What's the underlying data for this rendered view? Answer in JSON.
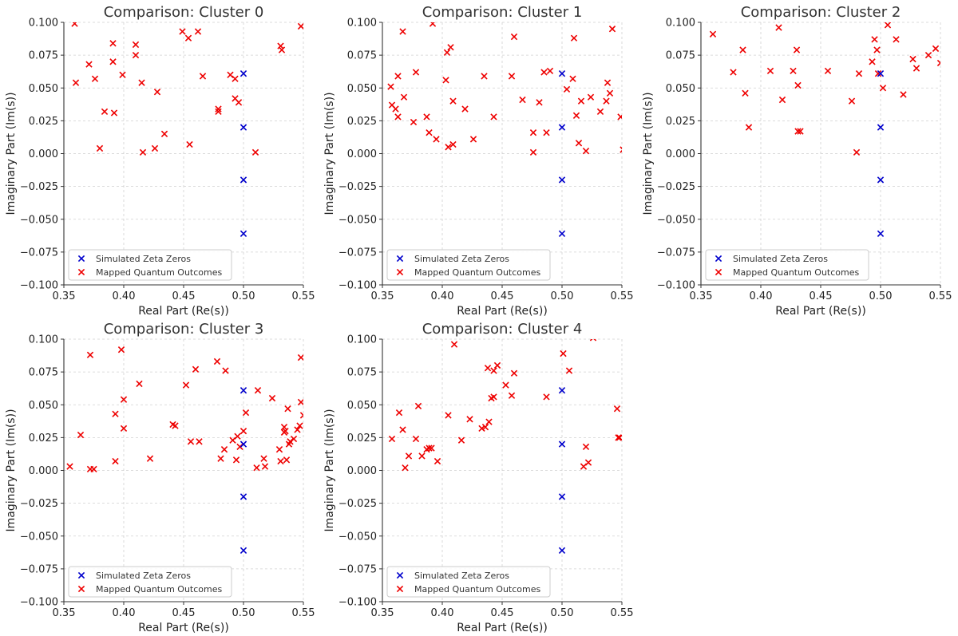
{
  "colors": {
    "zeros": "#0000cc",
    "outcomes": "#ee0000",
    "grid": "#d0d0d0",
    "axis": "#333333"
  },
  "chart_data": [
    {
      "type": "scatter",
      "title": "Comparison: Cluster 0",
      "xlabel": "Real Part (Re(s))",
      "ylabel": "Imaginary Part (Im(s))",
      "xlim": [
        0.35,
        0.55
      ],
      "ylim": [
        -0.1,
        0.1
      ],
      "xticks": [
        "0.35",
        "0.40",
        "0.45",
        "0.50",
        "0.55"
      ],
      "yticks": [
        "−0.100",
        "−0.075",
        "−0.050",
        "−0.025",
        "0.000",
        "0.025",
        "0.050",
        "0.075",
        "0.100"
      ],
      "grid": true,
      "legend": "lower left",
      "series": [
        {
          "name": "Simulated Zeta Zeros",
          "color": "#0000cc",
          "marker": "x",
          "points": [
            [
              0.5,
              0.061
            ],
            [
              0.5,
              0.02
            ],
            [
              0.5,
              -0.02
            ],
            [
              0.5,
              -0.061
            ]
          ]
        },
        {
          "name": "Mapped Quantum Outcomes",
          "color": "#ee0000",
          "marker": "x",
          "points": [
            [
              0.359,
              0.099
            ],
            [
              0.36,
              0.054
            ],
            [
              0.371,
              0.068
            ],
            [
              0.376,
              0.057
            ],
            [
              0.38,
              0.004
            ],
            [
              0.384,
              0.032
            ],
            [
              0.391,
              0.084
            ],
            [
              0.391,
              0.07
            ],
            [
              0.392,
              0.031
            ],
            [
              0.399,
              0.06
            ],
            [
              0.41,
              0.083
            ],
            [
              0.41,
              0.075
            ],
            [
              0.415,
              0.054
            ],
            [
              0.416,
              0.001
            ],
            [
              0.426,
              0.004
            ],
            [
              0.428,
              0.047
            ],
            [
              0.434,
              0.015
            ],
            [
              0.449,
              0.093
            ],
            [
              0.454,
              0.088
            ],
            [
              0.455,
              0.007
            ],
            [
              0.462,
              0.093
            ],
            [
              0.466,
              0.059
            ],
            [
              0.479,
              0.034
            ],
            [
              0.479,
              0.032
            ],
            [
              0.489,
              0.06
            ],
            [
              0.493,
              0.057
            ],
            [
              0.493,
              0.042
            ],
            [
              0.496,
              0.039
            ],
            [
              0.51,
              0.001
            ],
            [
              0.531,
              0.082
            ],
            [
              0.532,
              0.079
            ],
            [
              0.548,
              0.097
            ]
          ]
        }
      ]
    },
    {
      "type": "scatter",
      "title": "Comparison: Cluster 1",
      "xlabel": "Real Part (Re(s))",
      "ylabel": "Imaginary Part (Im(s))",
      "xlim": [
        0.35,
        0.55
      ],
      "ylim": [
        -0.1,
        0.1
      ],
      "xticks": [
        "0.35",
        "0.40",
        "0.45",
        "0.50",
        "0.55"
      ],
      "yticks": [
        "−0.100",
        "−0.075",
        "−0.050",
        "−0.025",
        "0.000",
        "0.025",
        "0.050",
        "0.075",
        "0.100"
      ],
      "grid": true,
      "legend": "lower left",
      "series": [
        {
          "name": "Simulated Zeta Zeros",
          "color": "#0000cc",
          "marker": "x",
          "points": [
            [
              0.5,
              0.061
            ],
            [
              0.5,
              0.02
            ],
            [
              0.5,
              -0.02
            ],
            [
              0.5,
              -0.061
            ]
          ]
        },
        {
          "name": "Mapped Quantum Outcomes",
          "color": "#ee0000",
          "marker": "x",
          "points": [
            [
              0.357,
              0.051
            ],
            [
              0.358,
              0.037
            ],
            [
              0.361,
              0.034
            ],
            [
              0.363,
              0.059
            ],
            [
              0.363,
              0.028
            ],
            [
              0.367,
              0.093
            ],
            [
              0.368,
              0.043
            ],
            [
              0.376,
              0.024
            ],
            [
              0.378,
              0.062
            ],
            [
              0.387,
              0.028
            ],
            [
              0.389,
              0.016
            ],
            [
              0.392,
              0.099
            ],
            [
              0.395,
              0.011
            ],
            [
              0.403,
              0.056
            ],
            [
              0.404,
              0.077
            ],
            [
              0.405,
              0.005
            ],
            [
              0.407,
              0.081
            ],
            [
              0.409,
              0.04
            ],
            [
              0.409,
              0.007
            ],
            [
              0.419,
              0.034
            ],
            [
              0.426,
              0.011
            ],
            [
              0.435,
              0.059
            ],
            [
              0.443,
              0.028
            ],
            [
              0.458,
              0.059
            ],
            [
              0.46,
              0.089
            ],
            [
              0.467,
              0.041
            ],
            [
              0.476,
              0.016
            ],
            [
              0.476,
              0.001
            ],
            [
              0.481,
              0.039
            ],
            [
              0.485,
              0.062
            ],
            [
              0.487,
              0.016
            ],
            [
              0.49,
              0.063
            ],
            [
              0.504,
              0.049
            ],
            [
              0.509,
              0.057
            ],
            [
              0.51,
              0.088
            ],
            [
              0.512,
              0.029
            ],
            [
              0.514,
              0.008
            ],
            [
              0.516,
              0.04
            ],
            [
              0.52,
              0.002
            ],
            [
              0.524,
              0.043
            ],
            [
              0.532,
              0.032
            ],
            [
              0.537,
              0.04
            ],
            [
              0.538,
              0.054
            ],
            [
              0.54,
              0.046
            ],
            [
              0.542,
              0.095
            ],
            [
              0.549,
              0.028
            ],
            [
              0.551,
              0.003
            ]
          ]
        }
      ]
    },
    {
      "type": "scatter",
      "title": "Comparison: Cluster 2",
      "xlabel": "Real Part (Re(s))",
      "ylabel": "Imaginary Part (Im(s))",
      "xlim": [
        0.35,
        0.55
      ],
      "ylim": [
        -0.1,
        0.1
      ],
      "xticks": [
        "0.35",
        "0.40",
        "0.45",
        "0.50",
        "0.55"
      ],
      "yticks": [
        "−0.100",
        "−0.075",
        "−0.050",
        "−0.025",
        "0.000",
        "0.025",
        "0.050",
        "0.075",
        "0.100"
      ],
      "grid": true,
      "legend": "lower left",
      "series": [
        {
          "name": "Simulated Zeta Zeros",
          "color": "#0000cc",
          "marker": "x",
          "points": [
            [
              0.5,
              0.061
            ],
            [
              0.5,
              0.02
            ],
            [
              0.5,
              -0.02
            ],
            [
              0.5,
              -0.061
            ]
          ]
        },
        {
          "name": "Mapped Quantum Outcomes",
          "color": "#ee0000",
          "marker": "x",
          "points": [
            [
              0.36,
              0.091
            ],
            [
              0.377,
              0.062
            ],
            [
              0.385,
              0.079
            ],
            [
              0.387,
              0.046
            ],
            [
              0.39,
              0.02
            ],
            [
              0.408,
              0.063
            ],
            [
              0.415,
              0.096
            ],
            [
              0.418,
              0.041
            ],
            [
              0.427,
              0.063
            ],
            [
              0.43,
              0.079
            ],
            [
              0.431,
              0.052
            ],
            [
              0.431,
              0.017
            ],
            [
              0.433,
              0.017
            ],
            [
              0.456,
              0.063
            ],
            [
              0.476,
              0.04
            ],
            [
              0.48,
              0.001
            ],
            [
              0.482,
              0.061
            ],
            [
              0.493,
              0.07
            ],
            [
              0.495,
              0.087
            ],
            [
              0.497,
              0.079
            ],
            [
              0.498,
              0.061
            ],
            [
              0.502,
              0.05
            ],
            [
              0.506,
              0.098
            ],
            [
              0.513,
              0.087
            ],
            [
              0.519,
              0.045
            ],
            [
              0.527,
              0.072
            ],
            [
              0.53,
              0.065
            ],
            [
              0.54,
              0.075
            ],
            [
              0.546,
              0.08
            ],
            [
              0.55,
              0.069
            ]
          ]
        }
      ]
    },
    {
      "type": "scatter",
      "title": "Comparison: Cluster 3",
      "xlabel": "Real Part (Re(s))",
      "ylabel": "Imaginary Part (Im(s))",
      "xlim": [
        0.35,
        0.55
      ],
      "ylim": [
        -0.1,
        0.1
      ],
      "xticks": [
        "0.35",
        "0.40",
        "0.45",
        "0.50",
        "0.55"
      ],
      "yticks": [
        "−0.100",
        "−0.075",
        "−0.050",
        "−0.025",
        "0.000",
        "0.025",
        "0.050",
        "0.075",
        "0.100"
      ],
      "grid": true,
      "legend": "lower left",
      "series": [
        {
          "name": "Simulated Zeta Zeros",
          "color": "#0000cc",
          "marker": "x",
          "points": [
            [
              0.5,
              0.061
            ],
            [
              0.5,
              0.02
            ],
            [
              0.5,
              -0.02
            ],
            [
              0.5,
              -0.061
            ]
          ]
        },
        {
          "name": "Mapped Quantum Outcomes",
          "color": "#ee0000",
          "marker": "x",
          "points": [
            [
              0.355,
              0.003
            ],
            [
              0.364,
              0.027
            ],
            [
              0.372,
              0.088
            ],
            [
              0.372,
              0.001
            ],
            [
              0.375,
              0.001
            ],
            [
              0.393,
              0.043
            ],
            [
              0.393,
              0.007
            ],
            [
              0.398,
              0.092
            ],
            [
              0.4,
              0.054
            ],
            [
              0.4,
              0.032
            ],
            [
              0.413,
              0.066
            ],
            [
              0.422,
              0.009
            ],
            [
              0.441,
              0.035
            ],
            [
              0.443,
              0.034
            ],
            [
              0.452,
              0.065
            ],
            [
              0.456,
              0.022
            ],
            [
              0.46,
              0.077
            ],
            [
              0.463,
              0.022
            ],
            [
              0.478,
              0.083
            ],
            [
              0.481,
              0.009
            ],
            [
              0.484,
              0.016
            ],
            [
              0.485,
              0.076
            ],
            [
              0.491,
              0.023
            ],
            [
              0.494,
              0.008
            ],
            [
              0.495,
              0.026
            ],
            [
              0.497,
              0.018
            ],
            [
              0.5,
              0.03
            ],
            [
              0.502,
              0.044
            ],
            [
              0.511,
              0.002
            ],
            [
              0.512,
              0.061
            ],
            [
              0.517,
              0.009
            ],
            [
              0.518,
              0.003
            ],
            [
              0.524,
              0.055
            ],
            [
              0.53,
              0.016
            ],
            [
              0.531,
              0.007
            ],
            [
              0.534,
              0.033
            ],
            [
              0.534,
              0.029
            ],
            [
              0.535,
              0.03
            ],
            [
              0.536,
              0.008
            ],
            [
              0.537,
              0.047
            ],
            [
              0.538,
              0.02
            ],
            [
              0.539,
              0.022
            ],
            [
              0.542,
              0.024
            ],
            [
              0.545,
              0.031
            ],
            [
              0.547,
              0.034
            ],
            [
              0.548,
              0.086
            ],
            [
              0.548,
              0.052
            ],
            [
              0.55,
              0.042
            ]
          ]
        }
      ]
    },
    {
      "type": "scatter",
      "title": "Comparison: Cluster 4",
      "xlabel": "Real Part (Re(s))",
      "ylabel": "Imaginary Part (Im(s))",
      "xlim": [
        0.35,
        0.55
      ],
      "ylim": [
        -0.1,
        0.1
      ],
      "xticks": [
        "0.35",
        "0.40",
        "0.45",
        "0.50",
        "0.55"
      ],
      "yticks": [
        "−0.100",
        "−0.075",
        "−0.050",
        "−0.025",
        "0.000",
        "0.025",
        "0.050",
        "0.075",
        "0.100"
      ],
      "grid": true,
      "legend": "lower left",
      "series": [
        {
          "name": "Simulated Zeta Zeros",
          "color": "#0000cc",
          "marker": "x",
          "points": [
            [
              0.5,
              0.061
            ],
            [
              0.5,
              0.02
            ],
            [
              0.5,
              -0.02
            ],
            [
              0.5,
              -0.061
            ]
          ]
        },
        {
          "name": "Mapped Quantum Outcomes",
          "color": "#ee0000",
          "marker": "x",
          "points": [
            [
              0.358,
              0.024
            ],
            [
              0.364,
              0.044
            ],
            [
              0.367,
              0.031
            ],
            [
              0.369,
              0.002
            ],
            [
              0.372,
              0.011
            ],
            [
              0.378,
              0.024
            ],
            [
              0.38,
              0.049
            ],
            [
              0.383,
              0.011
            ],
            [
              0.387,
              0.016
            ],
            [
              0.389,
              0.017
            ],
            [
              0.391,
              0.017
            ],
            [
              0.396,
              0.007
            ],
            [
              0.405,
              0.042
            ],
            [
              0.41,
              0.096
            ],
            [
              0.416,
              0.023
            ],
            [
              0.423,
              0.039
            ],
            [
              0.433,
              0.032
            ],
            [
              0.436,
              0.033
            ],
            [
              0.438,
              0.078
            ],
            [
              0.439,
              0.037
            ],
            [
              0.441,
              0.055
            ],
            [
              0.443,
              0.056
            ],
            [
              0.443,
              0.076
            ],
            [
              0.446,
              0.08
            ],
            [
              0.453,
              0.065
            ],
            [
              0.458,
              0.057
            ],
            [
              0.46,
              0.074
            ],
            [
              0.487,
              0.056
            ],
            [
              0.501,
              0.089
            ],
            [
              0.506,
              0.076
            ],
            [
              0.518,
              0.003
            ],
            [
              0.52,
              0.018
            ],
            [
              0.522,
              0.006
            ],
            [
              0.526,
              0.101
            ],
            [
              0.546,
              0.047
            ],
            [
              0.547,
              0.025
            ],
            [
              0.548,
              0.025
            ]
          ]
        }
      ]
    }
  ]
}
